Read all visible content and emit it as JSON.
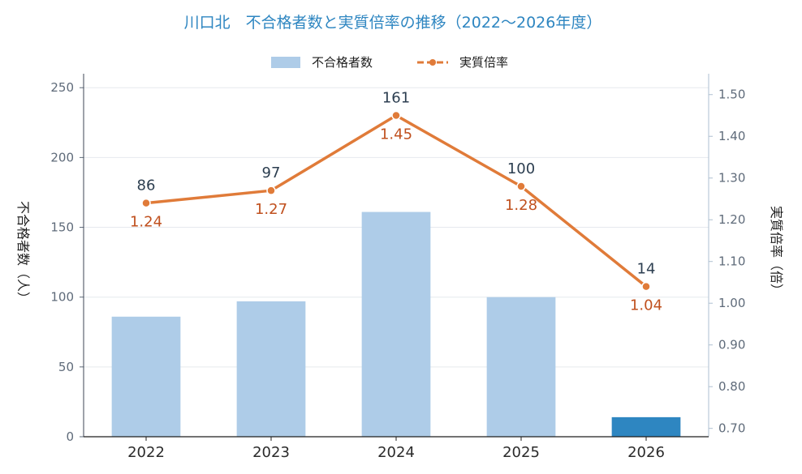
{
  "chart_data": {
    "type": "bar",
    "title": "川口北　不合格者数と実質倍率の推移（2022〜2026年度）",
    "categories": [
      "2022",
      "2023",
      "2024",
      "2025",
      "2026"
    ],
    "series": [
      {
        "name": "不合格者数",
        "kind": "bar",
        "axis": "left",
        "values": [
          86,
          97,
          161,
          100,
          14
        ]
      },
      {
        "name": "実質倍率",
        "kind": "line",
        "axis": "right",
        "values": [
          1.24,
          1.27,
          1.45,
          1.28,
          1.04
        ]
      }
    ],
    "ylabel_left": "不合格者数（人）",
    "ylabel_right": "実質倍率（倍）",
    "ylim_left": [
      0,
      260
    ],
    "ylim_right": [
      0.68,
      1.55
    ],
    "yticks_left": [
      "0",
      "50",
      "100",
      "150",
      "200",
      "250"
    ],
    "yticks_right": [
      "0.70",
      "0.80",
      "0.90",
      "1.00",
      "1.10",
      "1.20",
      "1.30",
      "1.40",
      "1.50"
    ],
    "bar_labels": [
      "86",
      "97",
      "161",
      "100",
      "14"
    ],
    "line_labels": [
      "1.24",
      "1.27",
      "1.45",
      "1.28",
      "1.04"
    ],
    "grid": true,
    "legend_position": "top-center",
    "colors": {
      "bar": "#aecce8",
      "bar_highlight": "#2e86c1",
      "line": "#e07b39",
      "line_label": "#c0501e",
      "title": "#2e86c1"
    }
  }
}
